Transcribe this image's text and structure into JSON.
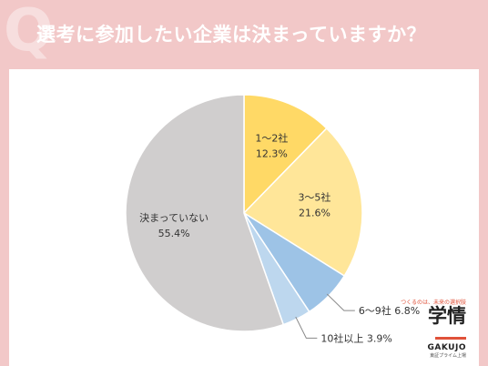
{
  "header": {
    "q_mark": "Q",
    "title": "選考に参加したい企業は決まっていますか？"
  },
  "logo": {
    "tagline": "つくるのは、未来の選択肢",
    "main": "学情",
    "sub": "GAKUJO",
    "foot": "東証プライム上場"
  },
  "chart_data": {
    "type": "pie",
    "title": "",
    "slices": [
      {
        "label": "1～2社",
        "value": 12.3,
        "value_label": "12.3%",
        "color": "#ffd966"
      },
      {
        "label": "3～5社",
        "value": 21.6,
        "value_label": "21.6%",
        "color": "#ffe699"
      },
      {
        "label": "6～9社",
        "value": 6.8,
        "value_label": "6.8%",
        "color": "#9dc3e6"
      },
      {
        "label": "10社以上",
        "value": 3.9,
        "value_label": "3.9%",
        "color": "#bdd7ee"
      },
      {
        "label": "決まっていない",
        "value": 55.4,
        "value_label": "55.4%",
        "color": "#d0cece"
      }
    ],
    "start_angle": "12 o'clock",
    "direction": "clockwise"
  }
}
